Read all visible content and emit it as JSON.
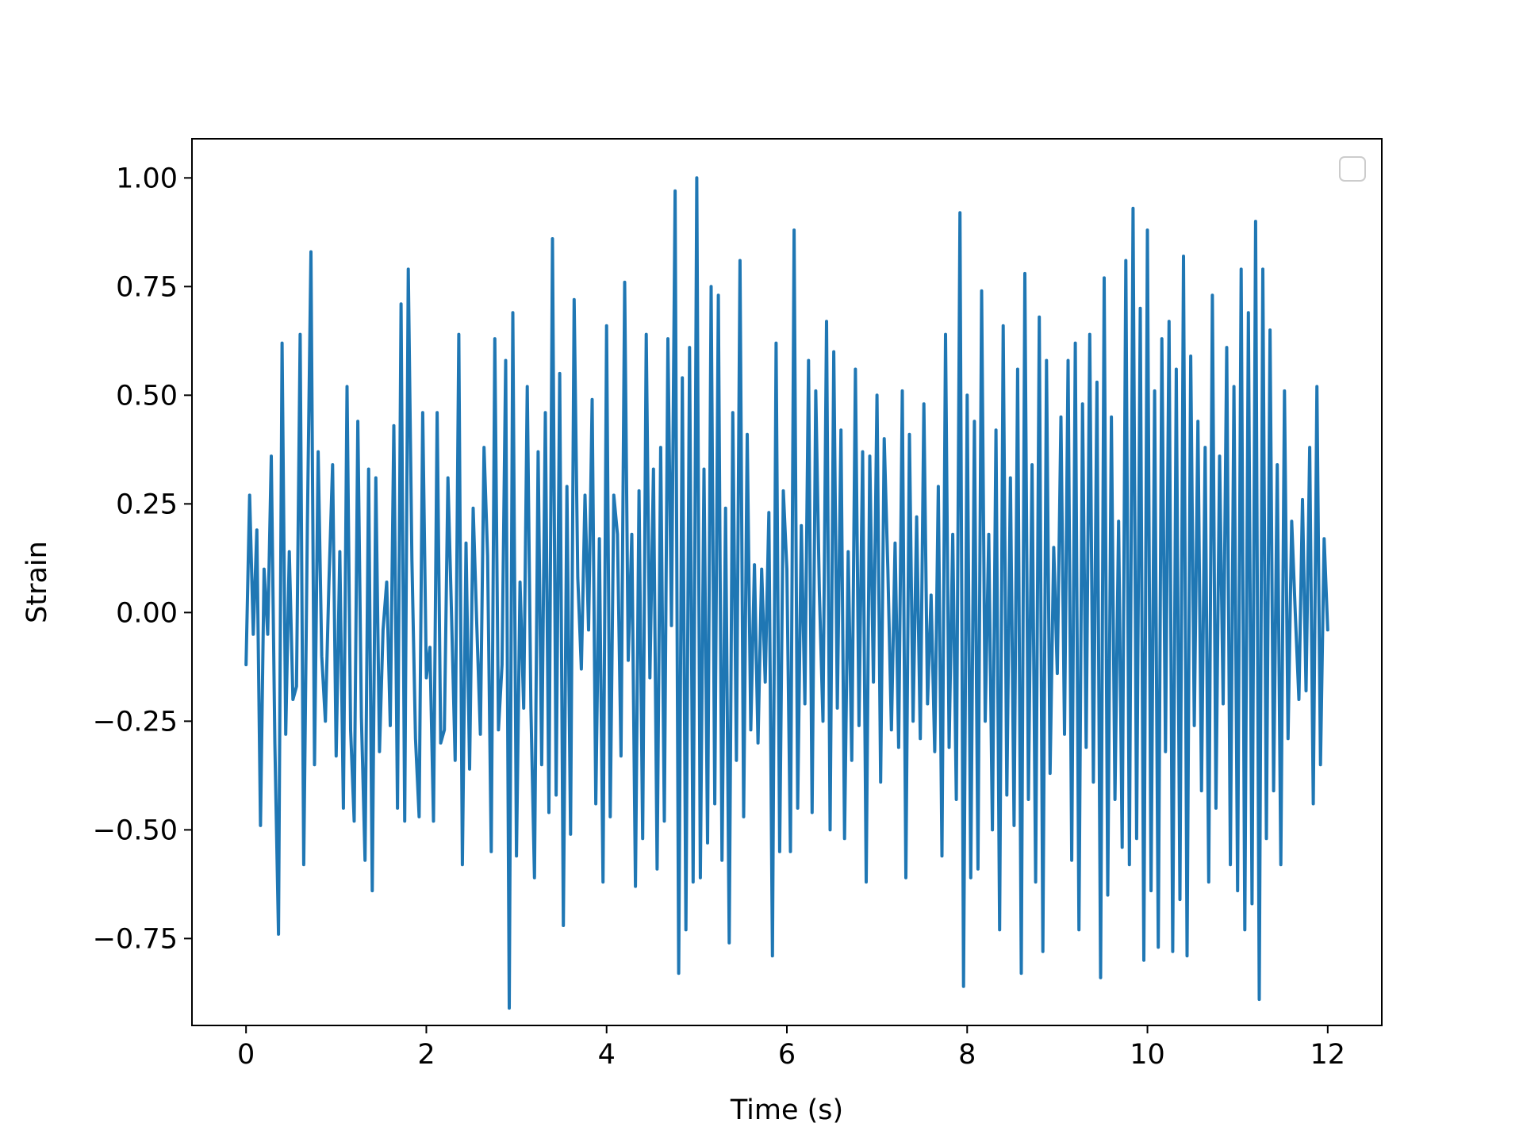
{
  "chart_data": {
    "type": "line",
    "title": "",
    "xlabel": "Time (s)",
    "ylabel": "Strain",
    "xlim": [
      -0.6,
      12.6
    ],
    "ylim": [
      -0.95,
      1.09
    ],
    "xticks": [
      0,
      2,
      4,
      6,
      8,
      10,
      12
    ],
    "xtick_labels": [
      "0",
      "2",
      "4",
      "6",
      "8",
      "10",
      "12"
    ],
    "yticks": [
      -0.75,
      -0.5,
      -0.25,
      0.0,
      0.25,
      0.5,
      0.75,
      1.0
    ],
    "ytick_labels": [
      "−0.75",
      "−0.50",
      "−0.25",
      "0.00",
      "0.25",
      "0.50",
      "0.75",
      "1.00"
    ],
    "grid": false,
    "legend": {
      "placement": "top-right",
      "entries": []
    },
    "colors": {
      "series": "#1f77b4",
      "axes": "#000000",
      "background": "#ffffff"
    },
    "series": [
      {
        "x": [
          0,
          0.04,
          0.08,
          0.12,
          0.16,
          0.2,
          0.24,
          0.28,
          0.32,
          0.36,
          0.4,
          0.44,
          0.48,
          0.52,
          0.56,
          0.6,
          0.64,
          0.68,
          0.72,
          0.76,
          0.8,
          0.84,
          0.88,
          0.92,
          0.96,
          1.0,
          1.04,
          1.08,
          1.12,
          1.16,
          1.2,
          1.24,
          1.28,
          1.32,
          1.36,
          1.4,
          1.44,
          1.48,
          1.52,
          1.56,
          1.6,
          1.64,
          1.68,
          1.72,
          1.76,
          1.8,
          1.84,
          1.88,
          1.92,
          1.96,
          2.0,
          2.04,
          2.08,
          2.12,
          2.16,
          2.2,
          2.24,
          2.28,
          2.32,
          2.36,
          2.4,
          2.44,
          2.48,
          2.52,
          2.56,
          2.6,
          2.64,
          2.68,
          2.72,
          2.76,
          2.8,
          2.84,
          2.88,
          2.92,
          2.96,
          3.0,
          3.04,
          3.08,
          3.12,
          3.16,
          3.2,
          3.24,
          3.28,
          3.32,
          3.36,
          3.4,
          3.44,
          3.48,
          3.52,
          3.56,
          3.6,
          3.64,
          3.68,
          3.72,
          3.76,
          3.8,
          3.84,
          3.88,
          3.92,
          3.96,
          4.0,
          4.04,
          4.08,
          4.12,
          4.16,
          4.2,
          4.24,
          4.28,
          4.32,
          4.36,
          4.4,
          4.44,
          4.48,
          4.52,
          4.56,
          4.6,
          4.64,
          4.68,
          4.72,
          4.76,
          4.8,
          4.84,
          4.88,
          4.92,
          4.96,
          5.0,
          5.04,
          5.08,
          5.12,
          5.16,
          5.2,
          5.24,
          5.28,
          5.32,
          5.36,
          5.4,
          5.44,
          5.48,
          5.52,
          5.56,
          5.6,
          5.64,
          5.68,
          5.72,
          5.76,
          5.8,
          5.84,
          5.88,
          5.92,
          5.96,
          6.0,
          6.04,
          6.08,
          6.12,
          6.16,
          6.2,
          6.24,
          6.28,
          6.32,
          6.36,
          6.4,
          6.44,
          6.48,
          6.52,
          6.56,
          6.6,
          6.64,
          6.68,
          6.72,
          6.76,
          6.8,
          6.84,
          6.88,
          6.92,
          6.96,
          7.0,
          7.04,
          7.08,
          7.12,
          7.16,
          7.2,
          7.24,
          7.28,
          7.32,
          7.36,
          7.4,
          7.44,
          7.48,
          7.52,
          7.56,
          7.6,
          7.64,
          7.68,
          7.72,
          7.76,
          7.8,
          7.84,
          7.88,
          7.92,
          7.96,
          8.0,
          8.04,
          8.08,
          8.12,
          8.16,
          8.2,
          8.24,
          8.28,
          8.32,
          8.36,
          8.4,
          8.44,
          8.48,
          8.52,
          8.56,
          8.6,
          8.64,
          8.68,
          8.72,
          8.76,
          8.8,
          8.84,
          8.88,
          8.92,
          8.96,
          9.0,
          9.04,
          9.08,
          9.12,
          9.16,
          9.2,
          9.24,
          9.28,
          9.32,
          9.36,
          9.4,
          9.44,
          9.48,
          9.52,
          9.56,
          9.6,
          9.64,
          9.68,
          9.72,
          9.76,
          9.8,
          9.84,
          9.88,
          9.92,
          9.96,
          10.0,
          10.04,
          10.08,
          10.12,
          10.16,
          10.2,
          10.24,
          10.28,
          10.32,
          10.36,
          10.4,
          10.44,
          10.48,
          10.52,
          10.56,
          10.6,
          10.64,
          10.68,
          10.72,
          10.76,
          10.8,
          10.84,
          10.88,
          10.92,
          10.96,
          11.0,
          11.04,
          11.08,
          11.12,
          11.16,
          11.2,
          11.24,
          11.28,
          11.32,
          11.36,
          11.4,
          11.44,
          11.48,
          11.52,
          11.56,
          11.6,
          11.64,
          11.68,
          11.72,
          11.76,
          11.8,
          11.84,
          11.88,
          11.92,
          11.96,
          12.0
        ],
        "values": [
          -0.12,
          0.27,
          -0.05,
          0.19,
          -0.49,
          0.1,
          -0.05,
          0.36,
          -0.3,
          -0.74,
          0.62,
          -0.28,
          0.14,
          -0.2,
          -0.17,
          0.64,
          -0.58,
          0.2,
          0.83,
          -0.35,
          0.37,
          -0.1,
          -0.25,
          0.07,
          0.34,
          -0.33,
          0.14,
          -0.45,
          0.52,
          -0.27,
          -0.48,
          0.44,
          -0.24,
          -0.57,
          0.33,
          -0.64,
          0.31,
          -0.32,
          -0.04,
          0.07,
          -0.26,
          0.43,
          -0.45,
          0.71,
          -0.48,
          0.79,
          0.12,
          -0.29,
          -0.47,
          0.46,
          -0.15,
          -0.08,
          -0.48,
          0.46,
          -0.3,
          -0.27,
          0.31,
          -0.01,
          -0.34,
          0.64,
          -0.58,
          0.16,
          -0.36,
          0.24,
          -0.03,
          -0.28,
          0.38,
          0.13,
          -0.55,
          0.63,
          -0.27,
          -0.12,
          0.58,
          -0.91,
          0.69,
          -0.56,
          0.07,
          -0.22,
          0.52,
          -0.22,
          -0.61,
          0.37,
          -0.35,
          0.46,
          -0.46,
          0.86,
          -0.42,
          0.55,
          -0.72,
          0.29,
          -0.51,
          0.72,
          0.08,
          -0.13,
          0.27,
          -0.04,
          0.49,
          -0.44,
          0.17,
          -0.62,
          0.66,
          -0.47,
          0.27,
          0.18,
          -0.33,
          0.76,
          -0.11,
          0.18,
          -0.63,
          0.28,
          -0.52,
          0.64,
          -0.15,
          0.33,
          -0.59,
          0.38,
          -0.48,
          0.63,
          -0.03,
          0.97,
          -0.83,
          0.54,
          -0.73,
          0.61,
          -0.62,
          1.0,
          -0.61,
          0.33,
          -0.53,
          0.75,
          -0.44,
          0.73,
          -0.57,
          0.24,
          -0.76,
          0.46,
          -0.34,
          0.81,
          -0.47,
          0.41,
          -0.27,
          0.11,
          -0.3,
          0.1,
          -0.16,
          0.23,
          -0.79,
          0.62,
          -0.55,
          0.28,
          0.1,
          -0.55,
          0.88,
          -0.45,
          0.2,
          -0.21,
          0.58,
          -0.46,
          0.51,
          0.05,
          -0.25,
          0.67,
          -0.5,
          0.6,
          -0.22,
          0.42,
          -0.52,
          0.14,
          -0.34,
          0.56,
          -0.26,
          0.37,
          -0.62,
          0.36,
          -0.16,
          0.5,
          -0.39,
          0.4,
          0.1,
          -0.27,
          0.16,
          -0.31,
          0.51,
          -0.61,
          0.41,
          -0.25,
          0.22,
          -0.29,
          0.48,
          -0.21,
          0.04,
          -0.32,
          0.29,
          -0.56,
          0.64,
          -0.31,
          0.18,
          -0.43,
          0.92,
          -0.86,
          0.5,
          -0.61,
          0.44,
          -0.59,
          0.74,
          -0.25,
          0.18,
          -0.5,
          0.42,
          -0.73,
          0.66,
          -0.42,
          0.31,
          -0.49,
          0.56,
          -0.83,
          0.78,
          -0.43,
          0.34,
          -0.62,
          0.68,
          -0.78,
          0.58,
          -0.37,
          0.15,
          -0.14,
          0.45,
          -0.28,
          0.58,
          -0.57,
          0.62,
          -0.73,
          0.48,
          -0.31,
          0.64,
          -0.39,
          0.53,
          -0.84,
          0.77,
          -0.65,
          0.45,
          -0.43,
          0.21,
          -0.54,
          0.81,
          -0.58,
          0.93,
          -0.52,
          0.7,
          -0.8,
          0.88,
          -0.64,
          0.51,
          -0.77,
          0.63,
          -0.32,
          0.67,
          -0.78,
          0.56,
          -0.66,
          0.82,
          -0.79,
          0.59,
          -0.26,
          0.44,
          -0.41,
          0.38,
          -0.62,
          0.73,
          -0.45,
          0.36,
          -0.21,
          0.61,
          -0.58,
          0.52,
          -0.64,
          0.79,
          -0.73,
          0.69,
          -0.67,
          0.9,
          -0.89,
          0.79,
          -0.52,
          0.65,
          -0.41,
          0.34,
          -0.58,
          0.51,
          -0.29,
          0.21,
          0.0,
          -0.2,
          0.26,
          -0.18,
          0.38,
          -0.44,
          0.52,
          -0.35,
          0.17,
          -0.04
        ]
      }
    ]
  }
}
